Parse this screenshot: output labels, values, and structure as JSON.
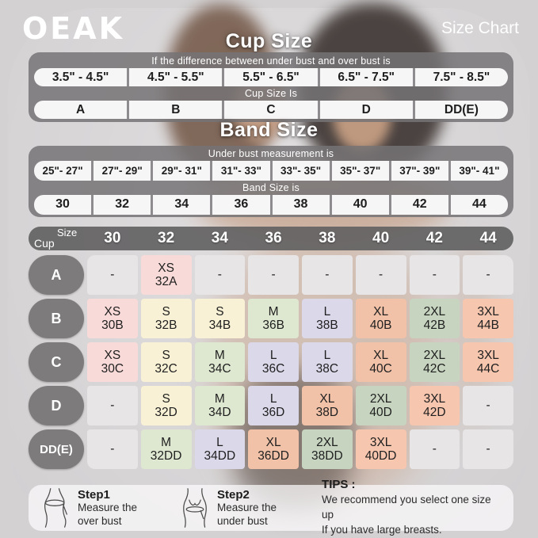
{
  "brand": {
    "logo": "OEAK"
  },
  "header": {
    "title": "Size Chart"
  },
  "cup": {
    "title": "Cup Size",
    "instruction": "If the difference between under bust and over bust is",
    "ranges": [
      "3.5\" - 4.5\"",
      "4.5\" - 5.5\"",
      "5.5\" - 6.5\"",
      "6.5\" - 7.5\"",
      "7.5\" - 8.5\""
    ],
    "result_label": "Cup Size Is",
    "sizes": [
      "A",
      "B",
      "C",
      "D",
      "DD(E)"
    ]
  },
  "band": {
    "title": "Band Size",
    "instruction": "Under bust measurement is",
    "ranges": [
      "25\"- 27\"",
      "27\"- 29\"",
      "29\"- 31\"",
      "31\"- 33\"",
      "33\"- 35\"",
      "35\"- 37\"",
      "37\"- 39\"",
      "39\"- 41\""
    ],
    "result_label": "Band Size is",
    "sizes": [
      "30",
      "32",
      "34",
      "36",
      "38",
      "40",
      "42",
      "44"
    ]
  },
  "matrix": {
    "corner_top": "Size",
    "corner_bottom": "Cup",
    "columns": [
      "30",
      "32",
      "34",
      "36",
      "38",
      "40",
      "42",
      "44"
    ],
    "colors": {
      "gray": "#e7e5e6",
      "pink": "#f8dbd8",
      "yellow": "#f8f1d5",
      "green": "#dee7d0",
      "lavender": "#dbd8ea",
      "peach": "#f1c2a8",
      "sage": "#c7d5c0",
      "salmon": "#f6c6af"
    },
    "rows": [
      {
        "label": "A",
        "cells": [
          {
            "t": "-",
            "b": "",
            "c": "gray"
          },
          {
            "t": "XS",
            "b": "32A",
            "c": "pink"
          },
          {
            "t": "-",
            "b": "",
            "c": "gray"
          },
          {
            "t": "-",
            "b": "",
            "c": "gray"
          },
          {
            "t": "-",
            "b": "",
            "c": "gray"
          },
          {
            "t": "-",
            "b": "",
            "c": "gray"
          },
          {
            "t": "-",
            "b": "",
            "c": "gray"
          },
          {
            "t": "-",
            "b": "",
            "c": "gray"
          }
        ]
      },
      {
        "label": "B",
        "cells": [
          {
            "t": "XS",
            "b": "30B",
            "c": "pink"
          },
          {
            "t": "S",
            "b": "32B",
            "c": "yellow"
          },
          {
            "t": "S",
            "b": "34B",
            "c": "yellow"
          },
          {
            "t": "M",
            "b": "36B",
            "c": "green"
          },
          {
            "t": "L",
            "b": "38B",
            "c": "lavender"
          },
          {
            "t": "XL",
            "b": "40B",
            "c": "peach"
          },
          {
            "t": "2XL",
            "b": "42B",
            "c": "sage"
          },
          {
            "t": "3XL",
            "b": "44B",
            "c": "salmon"
          }
        ]
      },
      {
        "label": "C",
        "cells": [
          {
            "t": "XS",
            "b": "30C",
            "c": "pink"
          },
          {
            "t": "S",
            "b": "32C",
            "c": "yellow"
          },
          {
            "t": "M",
            "b": "34C",
            "c": "green"
          },
          {
            "t": "L",
            "b": "36C",
            "c": "lavender"
          },
          {
            "t": "L",
            "b": "38C",
            "c": "lavender"
          },
          {
            "t": "XL",
            "b": "40C",
            "c": "peach"
          },
          {
            "t": "2XL",
            "b": "42C",
            "c": "sage"
          },
          {
            "t": "3XL",
            "b": "44C",
            "c": "salmon"
          }
        ]
      },
      {
        "label": "D",
        "cells": [
          {
            "t": "-",
            "b": "",
            "c": "gray"
          },
          {
            "t": "S",
            "b": "32D",
            "c": "yellow"
          },
          {
            "t": "M",
            "b": "34D",
            "c": "green"
          },
          {
            "t": "L",
            "b": "36D",
            "c": "lavender"
          },
          {
            "t": "XL",
            "b": "38D",
            "c": "peach"
          },
          {
            "t": "2XL",
            "b": "40D",
            "c": "sage"
          },
          {
            "t": "3XL",
            "b": "42D",
            "c": "salmon"
          },
          {
            "t": "-",
            "b": "",
            "c": "gray"
          }
        ]
      },
      {
        "label": "DD(E)",
        "cells": [
          {
            "t": "-",
            "b": "",
            "c": "gray"
          },
          {
            "t": "M",
            "b": "32DD",
            "c": "green"
          },
          {
            "t": "L",
            "b": "34DD",
            "c": "lavender"
          },
          {
            "t": "XL",
            "b": "36DD",
            "c": "peach"
          },
          {
            "t": "2XL",
            "b": "38DD",
            "c": "sage"
          },
          {
            "t": "3XL",
            "b": "40DD",
            "c": "salmon"
          },
          {
            "t": "-",
            "b": "",
            "c": "gray"
          },
          {
            "t": "-",
            "b": "",
            "c": "gray"
          }
        ]
      }
    ]
  },
  "footer": {
    "step1": {
      "title": "Step1",
      "lines": [
        "Measure the",
        "over bust"
      ]
    },
    "step2": {
      "title": "Step2",
      "lines": [
        "Measure the",
        "under bust"
      ]
    },
    "tips": {
      "title": "TIPS :",
      "lines": [
        "We recommend you select one size up",
        "If you have large breasts."
      ]
    }
  },
  "chart_data": [
    {
      "type": "table",
      "title": "Cup Size",
      "header": "If the difference between under bust and over bust is",
      "columns": [
        "3.5\" - 4.5\"",
        "4.5\" - 5.5\"",
        "5.5\" - 6.5\"",
        "6.5\" - 7.5\"",
        "7.5\" - 8.5\""
      ],
      "result_label": "Cup Size Is",
      "values": [
        "A",
        "B",
        "C",
        "D",
        "DD(E)"
      ]
    },
    {
      "type": "table",
      "title": "Band Size",
      "header": "Under bust measurement is",
      "columns": [
        "25\"- 27\"",
        "27\"- 29\"",
        "29\"- 31\"",
        "31\"- 33\"",
        "33\"- 35\"",
        "35\"- 37\"",
        "37\"- 39\"",
        "39\"- 41\""
      ],
      "result_label": "Band Size is",
      "values": [
        "30",
        "32",
        "34",
        "36",
        "38",
        "40",
        "42",
        "44"
      ]
    },
    {
      "type": "table",
      "title": "Cup x Band size matrix",
      "columns": [
        "30",
        "32",
        "34",
        "36",
        "38",
        "40",
        "42",
        "44"
      ],
      "rows": [
        {
          "cup": "A",
          "values": [
            "-",
            "XS 32A",
            "-",
            "-",
            "-",
            "-",
            "-",
            "-"
          ]
        },
        {
          "cup": "B",
          "values": [
            "XS 30B",
            "S 32B",
            "S 34B",
            "M 36B",
            "L 38B",
            "XL 40B",
            "2XL 42B",
            "3XL 44B"
          ]
        },
        {
          "cup": "C",
          "values": [
            "XS 30C",
            "S 32C",
            "M 34C",
            "L 36C",
            "L 38C",
            "XL 40C",
            "2XL 42C",
            "3XL 44C"
          ]
        },
        {
          "cup": "D",
          "values": [
            "-",
            "S 32D",
            "M 34D",
            "L 36D",
            "XL 38D",
            "2XL 40D",
            "3XL 42D",
            "-"
          ]
        },
        {
          "cup": "DD(E)",
          "values": [
            "-",
            "M 32DD",
            "L 34DD",
            "XL 36DD",
            "2XL 38DD",
            "3XL 40DD",
            "-",
            "-"
          ]
        }
      ]
    }
  ]
}
